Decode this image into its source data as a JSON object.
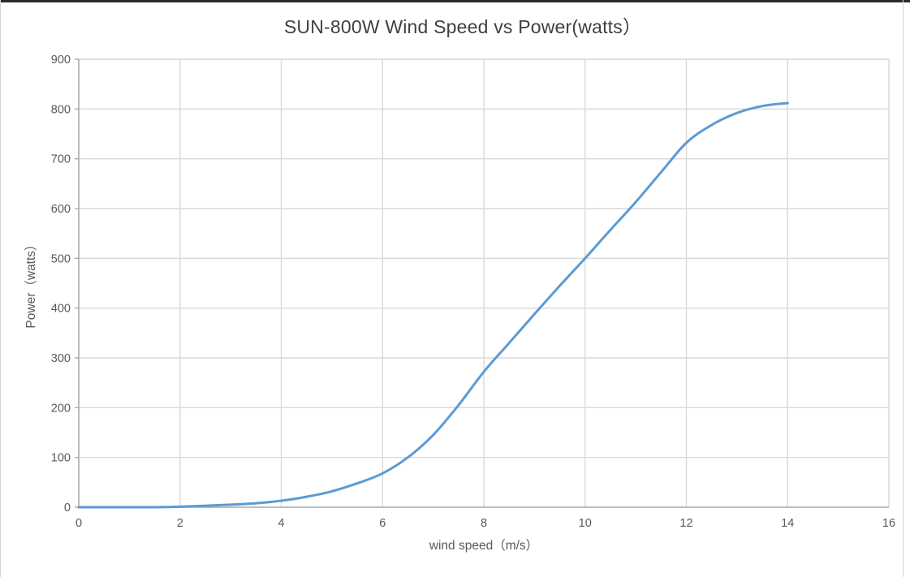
{
  "chart_data": {
    "type": "line",
    "title": "SUN-800W Wind Speed vs Power(watts）",
    "xlabel": "wind speed（m/s）",
    "ylabel": "Power（watts）",
    "xlim": [
      0,
      16
    ],
    "ylim": [
      0,
      900
    ],
    "x_ticks": [
      0,
      2,
      4,
      6,
      8,
      10,
      12,
      14,
      16
    ],
    "y_ticks": [
      0,
      100,
      200,
      300,
      400,
      500,
      600,
      700,
      800,
      900
    ],
    "grid": true,
    "legend": false,
    "series": [
      {
        "name": "Power",
        "color": "#5b9bd5",
        "x": [
          0,
          0.5,
          1,
          1.5,
          2,
          2.5,
          3,
          3.5,
          4,
          4.5,
          5,
          5.5,
          6,
          6.5,
          7,
          7.5,
          8,
          8.5,
          9,
          9.5,
          10,
          10.5,
          11,
          11.5,
          12,
          12.5,
          13,
          13.5,
          14
        ],
        "y": [
          0,
          0,
          0,
          0,
          1,
          3,
          5,
          8,
          13,
          21,
          32,
          48,
          68,
          100,
          145,
          205,
          272,
          330,
          388,
          445,
          500,
          557,
          613,
          673,
          732,
          768,
          792,
          806,
          812
        ]
      }
    ],
    "colors": {
      "line": "#5b9bd5",
      "gridline": "#d9d9d9",
      "axis": "#a9a9a9",
      "tick_label": "#595959",
      "title": "#3f3f3f"
    }
  }
}
